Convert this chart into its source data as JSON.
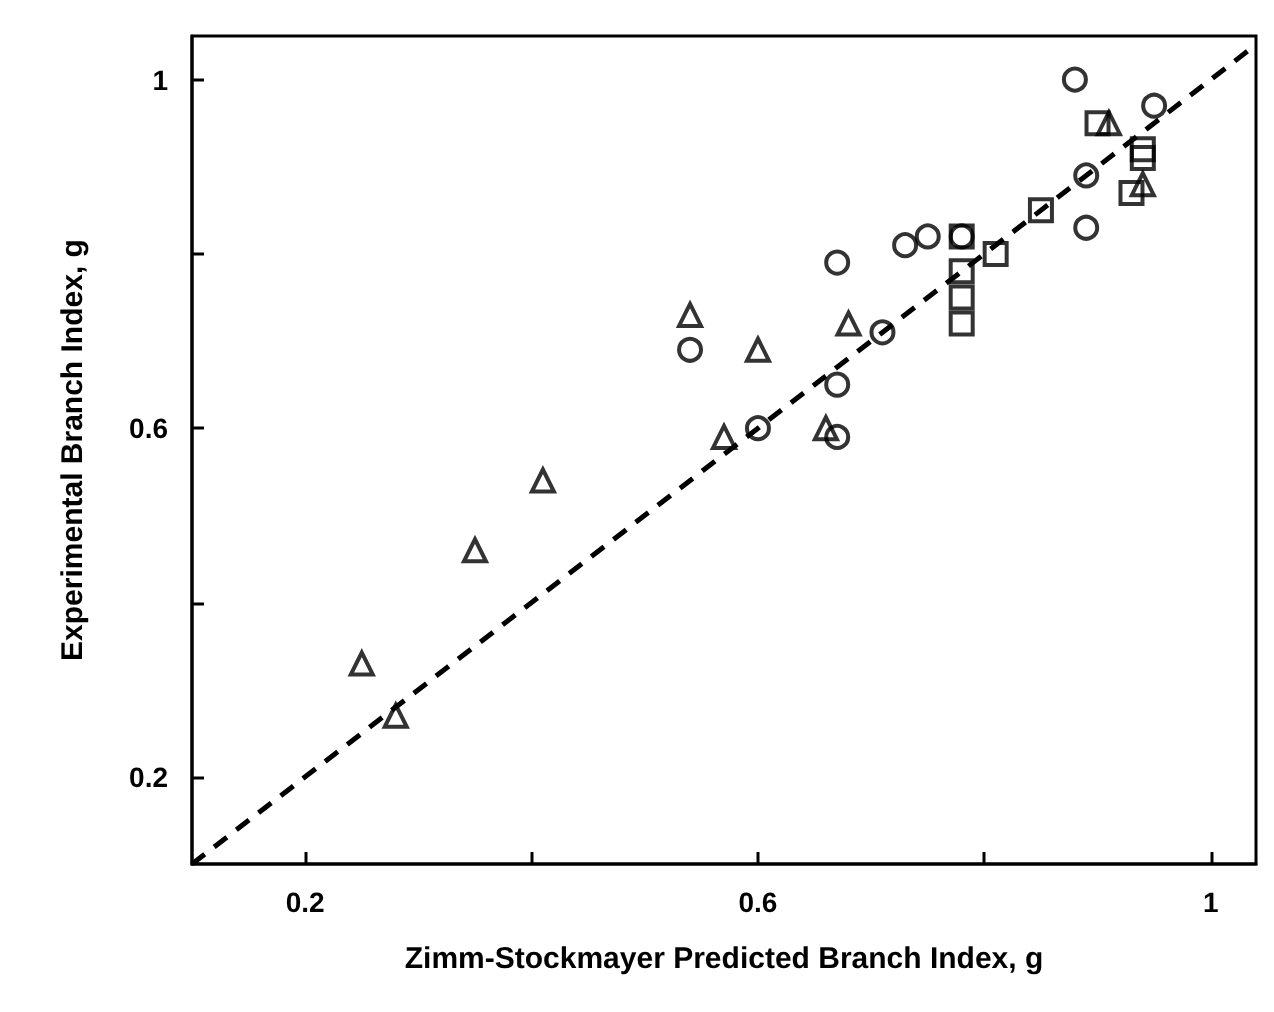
{
  "chart_data": {
    "type": "scatter",
    "xlabel": "Zimm-Stockmayer Predicted Branch Index, g",
    "ylabel": "Experimental Branch Index, g",
    "xlim": [
      0.1,
      1.04
    ],
    "ylim": [
      0.1,
      1.05
    ],
    "xticks": [
      0.2,
      {
        "value": 0.4,
        "label": null
      },
      0.6,
      {
        "value": 0.8,
        "label": null
      },
      1
    ],
    "yticks": [
      0.2,
      {
        "value": 0.4,
        "label": null
      },
      0.6,
      {
        "value": 0.8,
        "label": null
      },
      1
    ],
    "grid": false,
    "series": [
      {
        "color": "#000000",
        "marker": "circle",
        "x": [
          0.54,
          0.6,
          0.67,
          0.67,
          0.67,
          0.71,
          0.73,
          0.75,
          0.78,
          0.88,
          0.89,
          0.89,
          0.95
        ],
        "values": [
          0.69,
          0.6,
          0.79,
          0.65,
          0.59,
          0.71,
          0.81,
          0.82,
          0.82,
          1.0,
          0.89,
          0.83,
          0.97
        ]
      },
      {
        "color": "#000000",
        "marker": "square",
        "x": [
          0.78,
          0.78,
          0.78,
          0.78,
          0.81,
          0.85,
          0.9,
          0.94,
          0.94,
          0.93
        ],
        "values": [
          0.82,
          0.78,
          0.75,
          0.72,
          0.8,
          0.85,
          0.95,
          0.92,
          0.91,
          0.87
        ]
      },
      {
        "color": "#000000",
        "marker": "triangle",
        "x": [
          0.25,
          0.28,
          0.35,
          0.41,
          0.54,
          0.57,
          0.6,
          0.66,
          0.68,
          0.91,
          0.94
        ],
        "values": [
          0.33,
          0.27,
          0.46,
          0.54,
          0.73,
          0.59,
          0.69,
          0.6,
          0.72,
          0.95,
          0.88
        ]
      },
      {
        "type": "line",
        "color": "#000000",
        "marker": "none",
        "line_style": "dashed",
        "x": [
          0.1,
          1.04
        ],
        "values": [
          0.1,
          1.04
        ]
      }
    ]
  }
}
